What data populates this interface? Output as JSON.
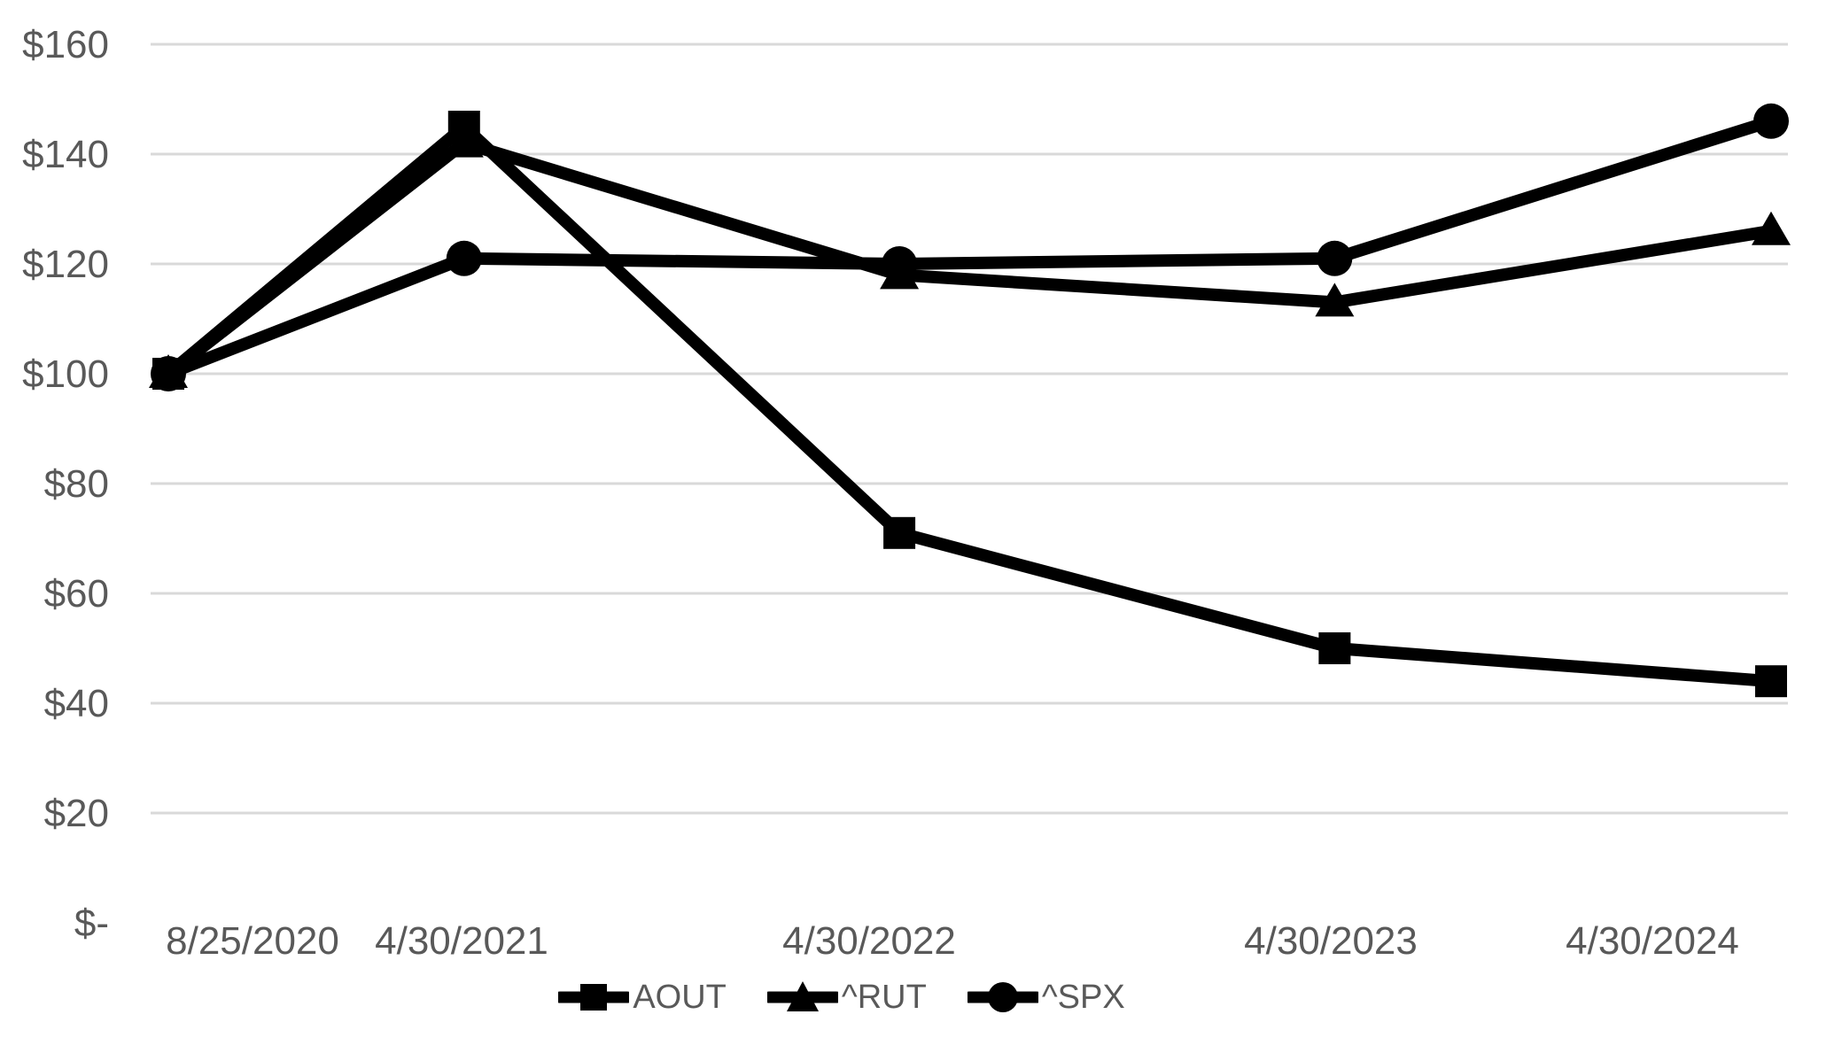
{
  "chart_data": {
    "type": "line",
    "title": "",
    "xlabel": "",
    "ylabel": "",
    "x_labels": [
      "8/25/2020",
      "4/30/2021",
      "4/30/2022",
      "4/30/2023",
      "4/30/2024"
    ],
    "x_days": [
      0,
      248,
      613,
      978,
      1344
    ],
    "y_tick_labels": [
      "$160",
      "$140",
      "$120",
      "$100",
      "$80",
      "$60",
      "$40",
      "$20",
      "$-"
    ],
    "y_tick_values": [
      160,
      140,
      120,
      100,
      80,
      60,
      40,
      20,
      0
    ],
    "ylim": [
      0,
      160
    ],
    "grid": "horizontal-only",
    "legend_position": "bottom-center",
    "series": [
      {
        "name": "AOUT",
        "marker": "square",
        "color": "#000000",
        "values": [
          100,
          145,
          71,
          50,
          44
        ]
      },
      {
        "name": "^RUT",
        "marker": "triangle",
        "color": "#000000",
        "values": [
          100,
          142,
          118,
          113,
          126
        ]
      },
      {
        "name": "^SPX",
        "marker": "circle",
        "color": "#000000",
        "values": [
          100,
          121,
          120,
          121,
          146
        ]
      }
    ],
    "colors": {
      "axis_text": "#595959",
      "gridline": "#D9D9D9",
      "series_line": "#000000",
      "background": "#FFFFFF"
    }
  }
}
